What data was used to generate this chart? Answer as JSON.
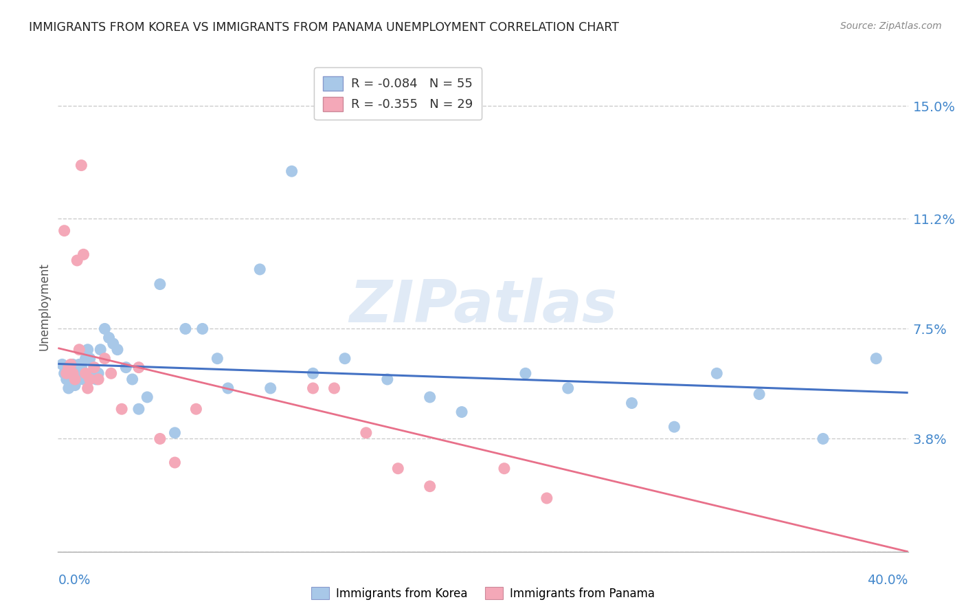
{
  "title": "IMMIGRANTS FROM KOREA VS IMMIGRANTS FROM PANAMA UNEMPLOYMENT CORRELATION CHART",
  "source": "Source: ZipAtlas.com",
  "ylabel": "Unemployment",
  "xlim": [
    0.0,
    0.4
  ],
  "ylim": [
    0.0,
    0.165
  ],
  "ytick_vals": [
    0.0,
    0.038,
    0.075,
    0.112,
    0.15
  ],
  "ytick_labels": [
    "",
    "3.8%",
    "7.5%",
    "11.2%",
    "15.0%"
  ],
  "xtick_left": "0.0%",
  "xtick_right": "40.0%",
  "korea_R": "-0.084",
  "korea_N": "55",
  "panama_R": "-0.355",
  "panama_N": "29",
  "korea_scatter_color": "#a8c8e8",
  "panama_scatter_color": "#f4a8b8",
  "korea_line_color": "#4472c4",
  "panama_line_color": "#e8708a",
  "watermark_color": "#ccddf0",
  "title_color": "#222222",
  "source_color": "#888888",
  "axis_label_color": "#4488cc",
  "grid_color": "#cccccc",
  "bg_color": "#ffffff",
  "korea_x": [
    0.002,
    0.003,
    0.004,
    0.005,
    0.005,
    0.006,
    0.006,
    0.007,
    0.007,
    0.008,
    0.008,
    0.009,
    0.01,
    0.01,
    0.011,
    0.012,
    0.012,
    0.013,
    0.014,
    0.015,
    0.016,
    0.017,
    0.018,
    0.019,
    0.02,
    0.022,
    0.024,
    0.026,
    0.028,
    0.032,
    0.035,
    0.038,
    0.042,
    0.048,
    0.055,
    0.06,
    0.068,
    0.075,
    0.08,
    0.095,
    0.1,
    0.11,
    0.12,
    0.135,
    0.155,
    0.175,
    0.19,
    0.22,
    0.24,
    0.27,
    0.29,
    0.31,
    0.33,
    0.36,
    0.385
  ],
  "korea_y": [
    0.063,
    0.06,
    0.058,
    0.062,
    0.055,
    0.06,
    0.058,
    0.063,
    0.058,
    0.06,
    0.056,
    0.06,
    0.063,
    0.058,
    0.062,
    0.06,
    0.058,
    0.065,
    0.068,
    0.065,
    0.06,
    0.062,
    0.058,
    0.06,
    0.068,
    0.075,
    0.072,
    0.07,
    0.068,
    0.062,
    0.058,
    0.048,
    0.052,
    0.09,
    0.04,
    0.075,
    0.075,
    0.065,
    0.055,
    0.095,
    0.055,
    0.128,
    0.06,
    0.065,
    0.058,
    0.052,
    0.047,
    0.06,
    0.055,
    0.05,
    0.042,
    0.06,
    0.053,
    0.038,
    0.065
  ],
  "panama_x": [
    0.003,
    0.004,
    0.005,
    0.006,
    0.007,
    0.008,
    0.009,
    0.01,
    0.011,
    0.012,
    0.013,
    0.014,
    0.015,
    0.017,
    0.019,
    0.022,
    0.025,
    0.03,
    0.038,
    0.048,
    0.055,
    0.065,
    0.12,
    0.13,
    0.145,
    0.16,
    0.175,
    0.21,
    0.23
  ],
  "panama_y": [
    0.108,
    0.06,
    0.062,
    0.063,
    0.06,
    0.058,
    0.098,
    0.068,
    0.13,
    0.1,
    0.06,
    0.055,
    0.058,
    0.062,
    0.058,
    0.065,
    0.06,
    0.048,
    0.062,
    0.038,
    0.03,
    0.048,
    0.055,
    0.055,
    0.04,
    0.028,
    0.022,
    0.028,
    0.018
  ],
  "korea_trend_start_y": 0.0632,
  "korea_trend_end_y": 0.0535,
  "panama_trend_start_y": 0.0685,
  "panama_trend_end_y": 0.0
}
